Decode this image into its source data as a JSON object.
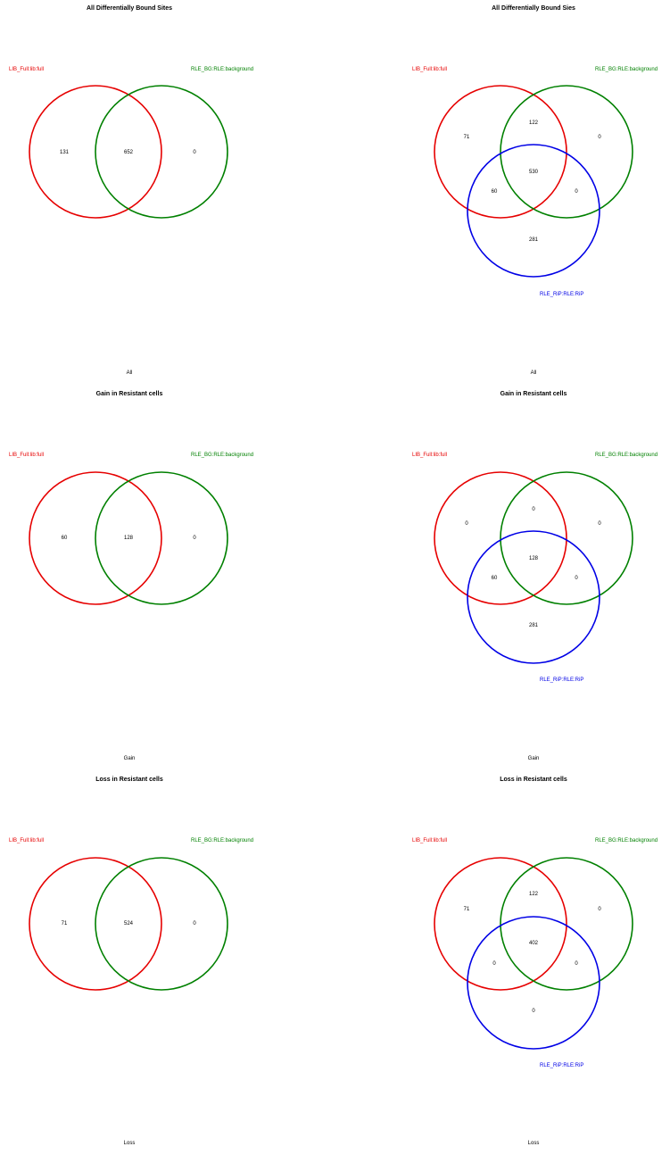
{
  "colors": {
    "set_a": "#e60000",
    "set_b": "#008000",
    "set_c": "#0000e6"
  },
  "panels": [
    {
      "title": "All Differentially Bound Sites",
      "caption": "All",
      "set_a": "LIB_Full:lib:full",
      "set_b": "RLE_BG:RLE:background",
      "a_only": "131",
      "ab": "652",
      "b_only": "0"
    },
    {
      "title": "All Differentially Bound Sies",
      "caption": "All",
      "set_a": "LIB_Full:lib:full",
      "set_b": "RLE_BG:RLE:background",
      "set_c": "RLE_RiP:RLE:RiP",
      "a_only": "71",
      "ab_only": "122",
      "b_only": "0",
      "abc": "530",
      "ac_only": "60",
      "bc_only": "0",
      "c_only": "281"
    },
    {
      "title": "Gain in Resistant cells",
      "caption": "Gain",
      "set_a": "LIB_Full:lib:full",
      "set_b": "RLE_BG:RLE:background",
      "a_only": "60",
      "ab": "128",
      "b_only": "0"
    },
    {
      "title": "Gain in Resistant cells",
      "caption": "Gain",
      "set_a": "LIB_Full:lib:full",
      "set_b": "RLE_BG:RLE:background",
      "set_c": "RLE_RiP:RLE:RiP",
      "a_only": "0",
      "ab_only": "0",
      "b_only": "0",
      "abc": "128",
      "ac_only": "60",
      "bc_only": "0",
      "c_only": "281"
    },
    {
      "title": "Loss in Resistant cells",
      "caption": "Loss",
      "set_a": "LIB_Full:lib:full",
      "set_b": "RLE_BG:RLE:background",
      "a_only": "71",
      "ab": "524",
      "b_only": "0"
    },
    {
      "title": "Loss in Resistant cells",
      "caption": "Loss",
      "set_a": "LIB_Full:lib:full",
      "set_b": "RLE_BG:RLE:background",
      "set_c": "RLE_RiP:RLE:RiP",
      "a_only": "71",
      "ab_only": "122",
      "b_only": "0",
      "abc": "402",
      "ac_only": "0",
      "bc_only": "0",
      "c_only": "0"
    }
  ]
}
